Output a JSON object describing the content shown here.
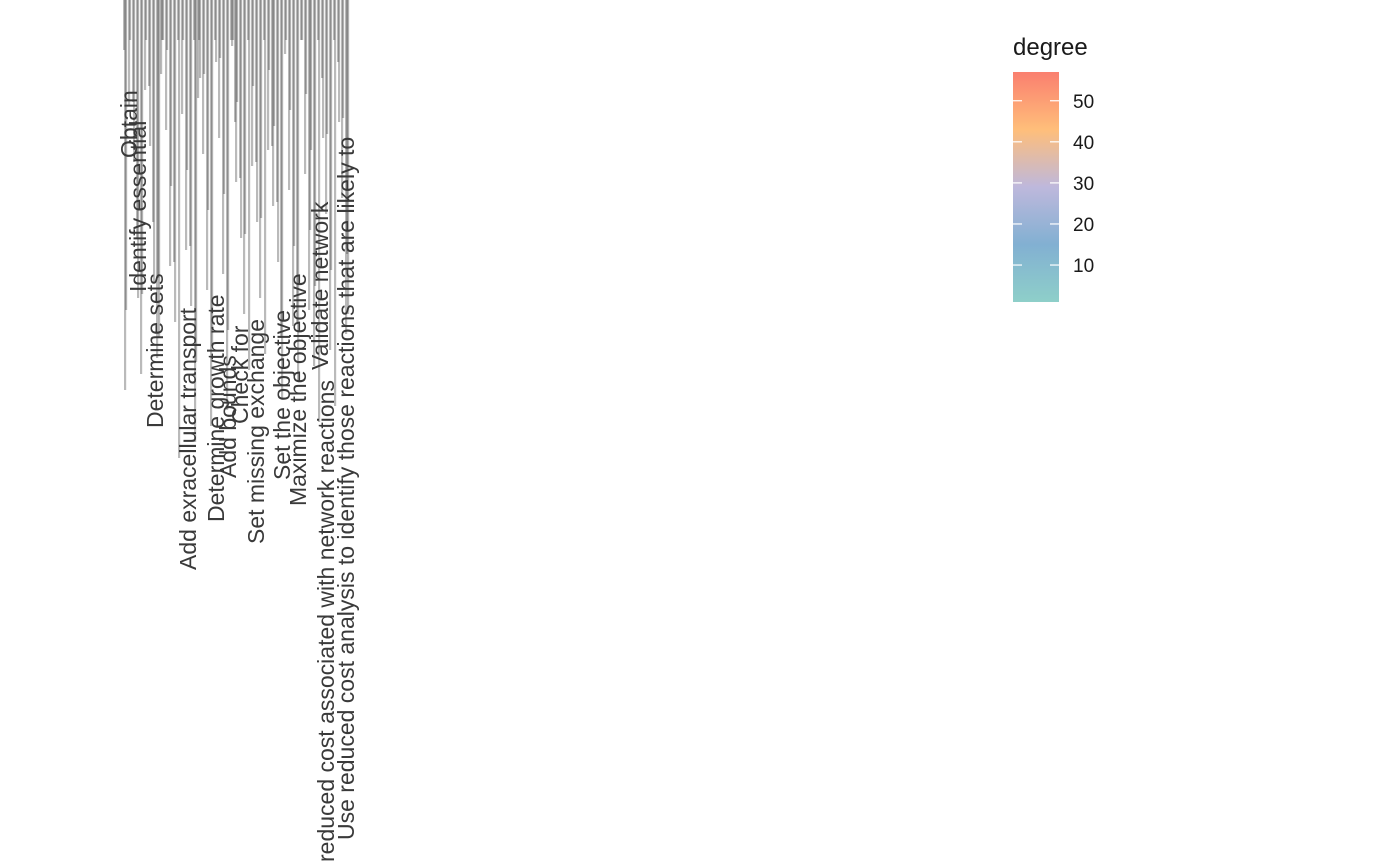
{
  "chart_data": {
    "type": "other",
    "grid": false,
    "legend": {
      "title": "degree",
      "position": "right",
      "ticks": [
        "10",
        "20",
        "30",
        "40",
        "50"
      ],
      "range": [
        1,
        57
      ],
      "colors": [
        "#8ecfc9",
        "#82b0d2",
        "#beb8dc",
        "#ffbe7a",
        "#fa7f6f"
      ]
    },
    "labels_visible": [
      "Identify essential",
      "Obtain",
      "Determine sets",
      "Add exracellular transport",
      "Determine growth rate",
      "Add bounds",
      "Check for",
      "Set missing exchange",
      "Set the objective",
      "Maximize the objective",
      "Validate network",
      "reduced cost associated with network reactions",
      "Use reduced cost analysis to identify those reactions that are likely to"
    ]
  }
}
